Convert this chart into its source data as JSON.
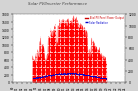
{
  "title": "Solar PV/Inverter Performance",
  "legend_pv": "Total PV Panel Power Output",
  "legend_rad": "Solar Radiation",
  "bg_color": "#d4d4d4",
  "plot_bg_color": "#ffffff",
  "grid_color": "#ffffff",
  "red_fill_color": "#ff0000",
  "blue_dot_color": "#0000cc",
  "text_color": "#000000",
  "title_color": "#404040",
  "legend_pv_color": "#cc0000",
  "legend_rad_color": "#0000cc",
  "n_points": 288,
  "ylim_left": [
    0,
    1800
  ],
  "ylim_right": [
    0,
    1200
  ],
  "yticks_left": [
    0,
    200,
    400,
    600,
    800,
    1000,
    1200,
    1400,
    1600,
    1800
  ],
  "yticks_right": [
    0,
    200,
    400,
    600,
    800,
    1000,
    1200
  ],
  "x_tick_count": 25
}
